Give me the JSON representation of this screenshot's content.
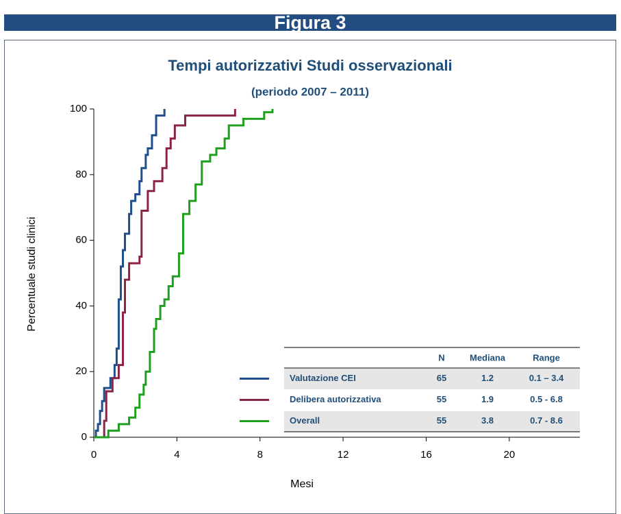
{
  "header": {
    "title": "Figura 3"
  },
  "chart_data": {
    "type": "step",
    "title": "Tempi autorizzativi Studi osservazionali",
    "subtitle": "(periodo 2007 – 2011)",
    "x_label": "Mesi",
    "y_label": "Percentuale  studi clinici",
    "xlim": [
      0,
      23.4
    ],
    "xticks": [
      0,
      4,
      8,
      12,
      16,
      20
    ],
    "ylim": [
      0,
      100
    ],
    "yticks": [
      0,
      20,
      40,
      60,
      80,
      100
    ],
    "series": [
      {
        "name": "Valutazione CEI",
        "color": "#1f4e8c",
        "x": [
          0,
          0.1,
          0.2,
          0.3,
          0.4,
          0.5,
          0.8,
          1.0,
          1.1,
          1.2,
          1.3,
          1.4,
          1.5,
          1.7,
          1.8,
          2.0,
          2.2,
          2.3,
          2.5,
          2.6,
          2.8,
          3.0,
          3.4
        ],
        "values": [
          0,
          2,
          4,
          8,
          11,
          15,
          18,
          22,
          27,
          42,
          52,
          57,
          62,
          68,
          72,
          74,
          78,
          82,
          86,
          88,
          92,
          98,
          100
        ]
      },
      {
        "name": "Delibera autorizzativa",
        "color": "#8b2346",
        "x": [
          0.4,
          0.5,
          0.6,
          0.9,
          1.2,
          1.4,
          1.5,
          1.7,
          2.2,
          2.3,
          2.6,
          2.9,
          3.3,
          3.5,
          3.7,
          3.9,
          4.4,
          6.8
        ],
        "values": [
          0,
          5,
          14,
          18,
          22,
          38,
          48,
          53,
          55,
          69,
          75,
          78,
          82,
          88,
          91,
          95,
          98,
          100
        ]
      },
      {
        "name": "Overall",
        "color": "#1ea01e",
        "x": [
          0,
          0.7,
          1.2,
          1.7,
          2.0,
          2.2,
          2.4,
          2.5,
          2.7,
          2.9,
          3.0,
          3.2,
          3.4,
          3.6,
          3.8,
          4.1,
          4.3,
          4.6,
          4.9,
          5.2,
          5.6,
          5.9,
          6.3,
          6.5,
          7.2,
          8.2,
          8.6
        ],
        "values": [
          0,
          2,
          4,
          6,
          9,
          13,
          16,
          20,
          26,
          33,
          36,
          40,
          42,
          46,
          49,
          56,
          68,
          72,
          77,
          84,
          86,
          88,
          91,
          95,
          97,
          99,
          100
        ]
      }
    ],
    "table": {
      "columns": [
        "N",
        "Mediana",
        "Range"
      ],
      "rows": [
        [
          65,
          1.2,
          "0.1 – 3.4"
        ],
        [
          55,
          1.9,
          "0.5 - 6.8"
        ],
        [
          55,
          3.8,
          "0.7 - 8.6"
        ]
      ]
    }
  }
}
